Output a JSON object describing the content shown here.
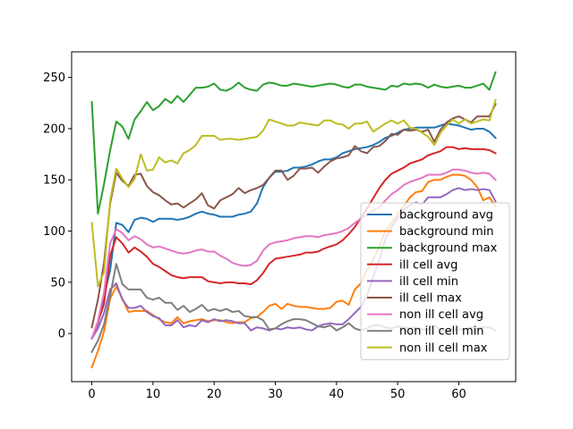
{
  "chart_data": {
    "type": "line",
    "title": "",
    "xlabel": "",
    "ylabel": "",
    "xlim": [
      -3.3,
      69.3
    ],
    "ylim": [
      -47,
      275
    ],
    "xticks": [
      0,
      10,
      20,
      30,
      40,
      50,
      60
    ],
    "yticks": [
      0,
      50,
      100,
      150,
      200,
      250
    ],
    "grid": false,
    "legend_position": "lower-right",
    "x": [
      0,
      1,
      2,
      3,
      4,
      5,
      6,
      7,
      8,
      9,
      10,
      11,
      12,
      13,
      14,
      15,
      16,
      17,
      18,
      19,
      20,
      21,
      22,
      23,
      24,
      25,
      26,
      27,
      28,
      29,
      30,
      31,
      32,
      33,
      34,
      35,
      36,
      37,
      38,
      39,
      40,
      41,
      42,
      43,
      44,
      45,
      46,
      47,
      48,
      49,
      50,
      51,
      52,
      53,
      54,
      55,
      56,
      57,
      58,
      59,
      60,
      61,
      62,
      63,
      64,
      65,
      66
    ],
    "series": [
      {
        "name": "background avg",
        "color": "#1f77b4",
        "values": [
          -5,
          10,
          36,
          62,
          108,
          106,
          99,
          111,
          113,
          112,
          109,
          112,
          112,
          112,
          111,
          112,
          114,
          117,
          119,
          117,
          116,
          114,
          114,
          114,
          116,
          117,
          119,
          127,
          143,
          152,
          158,
          158,
          159,
          162,
          162,
          163,
          165,
          168,
          170,
          170,
          172,
          176,
          178,
          180,
          181,
          182,
          184,
          187,
          191,
          193,
          196,
          199,
          200,
          201,
          201,
          201,
          201,
          203,
          205,
          204,
          203,
          201,
          199,
          200,
          200,
          197,
          191
        ]
      },
      {
        "name": "background min",
        "color": "#ff7f0e",
        "values": [
          -33,
          -17,
          2,
          34,
          46,
          34,
          21,
          22,
          22,
          22,
          18,
          14,
          11,
          10,
          16,
          10,
          12,
          13,
          14,
          12,
          13,
          13,
          11,
          10,
          11,
          11,
          15,
          16,
          21,
          27,
          29,
          24,
          29,
          27,
          26,
          26,
          25,
          24,
          24,
          25,
          31,
          32,
          28,
          43,
          49,
          62,
          72,
          85,
          100,
          108,
          117,
          124,
          133,
          138,
          139,
          148,
          150,
          150,
          153,
          155,
          155,
          154,
          150,
          143,
          130,
          133,
          124
        ]
      },
      {
        "name": "background max",
        "color": "#2ca02c",
        "values": [
          226,
          117,
          146,
          179,
          207,
          202,
          190,
          209,
          217,
          226,
          218,
          222,
          229,
          225,
          232,
          226,
          233,
          240,
          240,
          241,
          244,
          238,
          237,
          240,
          245,
          240,
          238,
          237,
          243,
          245,
          244,
          242,
          242,
          244,
          243,
          242,
          241,
          242,
          243,
          244,
          243,
          241,
          240,
          243,
          243,
          241,
          240,
          239,
          238,
          242,
          241,
          244,
          243,
          244,
          243,
          240,
          243,
          241,
          240,
          241,
          242,
          240,
          240,
          242,
          244,
          238,
          255
        ]
      },
      {
        "name": "ill cell avg",
        "color": "#d62728",
        "values": [
          -5,
          11,
          29,
          76,
          94,
          88,
          79,
          84,
          80,
          75,
          68,
          65,
          61,
          57,
          55,
          54,
          55,
          55,
          55,
          51,
          50,
          49,
          50,
          50,
          49,
          49,
          48,
          52,
          59,
          68,
          73,
          74,
          75,
          76,
          77,
          79,
          79,
          80,
          83,
          85,
          87,
          91,
          97,
          104,
          113,
          122,
          132,
          142,
          150,
          156,
          159,
          162,
          166,
          168,
          170,
          174,
          176,
          178,
          182,
          182,
          180,
          181,
          180,
          180,
          180,
          179,
          176
        ]
      },
      {
        "name": "ill cell min",
        "color": "#9467bd",
        "values": [
          -5,
          5,
          20,
          43,
          49,
          33,
          25,
          25,
          27,
          21,
          17,
          15,
          8,
          8,
          13,
          6,
          8,
          7,
          13,
          11,
          14,
          12,
          13,
          12,
          10,
          10,
          3,
          6,
          5,
          3,
          5,
          4,
          6,
          5,
          6,
          4,
          3,
          7,
          9,
          10,
          9,
          9,
          14,
          20,
          26,
          37,
          55,
          72,
          92,
          104,
          113,
          121,
          125,
          128,
          126,
          133,
          133,
          133,
          136,
          140,
          142,
          140,
          141,
          140,
          141,
          140,
          129
        ]
      },
      {
        "name": "ill cell max",
        "color": "#8c564b",
        "values": [
          6,
          33,
          69,
          127,
          157,
          149,
          144,
          155,
          156,
          144,
          138,
          135,
          130,
          126,
          127,
          123,
          127,
          131,
          137,
          125,
          122,
          130,
          133,
          136,
          142,
          137,
          140,
          142,
          145,
          152,
          159,
          159,
          150,
          154,
          161,
          161,
          162,
          157,
          163,
          168,
          171,
          172,
          174,
          183,
          178,
          176,
          182,
          183,
          188,
          195,
          194,
          199,
          198,
          199,
          197,
          199,
          187,
          199,
          206,
          210,
          212,
          209,
          206,
          212,
          212,
          212,
          224
        ]
      },
      {
        "name": "non ill cell avg",
        "color": "#e377c2",
        "values": [
          -5,
          12,
          40,
          88,
          102,
          98,
          91,
          95,
          92,
          87,
          84,
          85,
          83,
          81,
          79,
          78,
          79,
          81,
          82,
          80,
          80,
          76,
          73,
          69,
          67,
          66,
          67,
          71,
          81,
          87,
          89,
          90,
          91,
          93,
          94,
          95,
          95,
          94,
          96,
          97,
          98,
          100,
          103,
          108,
          112,
          116,
          120,
          123,
          130,
          136,
          140,
          145,
          148,
          150,
          152,
          155,
          155,
          155,
          157,
          160,
          160,
          159,
          157,
          156,
          157,
          156,
          150
        ]
      },
      {
        "name": "non ill cell min",
        "color": "#7f7f7f",
        "values": [
          -18,
          -7,
          9,
          37,
          68,
          48,
          43,
          43,
          43,
          35,
          33,
          35,
          30,
          30,
          23,
          27,
          21,
          24,
          28,
          22,
          24,
          22,
          24,
          21,
          22,
          17,
          16,
          16,
          13,
          4,
          5,
          9,
          12,
          14,
          14,
          13,
          10,
          7,
          6,
          8,
          3,
          6,
          10,
          5,
          3,
          5,
          8,
          8,
          6,
          5,
          7,
          6,
          5,
          6,
          4,
          4,
          8,
          3,
          4,
          4,
          4,
          4,
          6,
          5,
          6,
          6,
          3
        ]
      },
      {
        "name": "non ill cell max",
        "color": "#bcbd22",
        "values": [
          108,
          46,
          60,
          130,
          161,
          151,
          143,
          151,
          175,
          159,
          160,
          172,
          167,
          169,
          166,
          176,
          179,
          184,
          193,
          193,
          193,
          189,
          190,
          190,
          189,
          190,
          191,
          192,
          198,
          209,
          207,
          205,
          203,
          203,
          206,
          205,
          204,
          203,
          208,
          208,
          205,
          204,
          200,
          205,
          205,
          207,
          197,
          201,
          205,
          208,
          205,
          208,
          201,
          200,
          196,
          192,
          184,
          196,
          203,
          209,
          205,
          209,
          205,
          207,
          209,
          208,
          228
        ]
      }
    ]
  }
}
